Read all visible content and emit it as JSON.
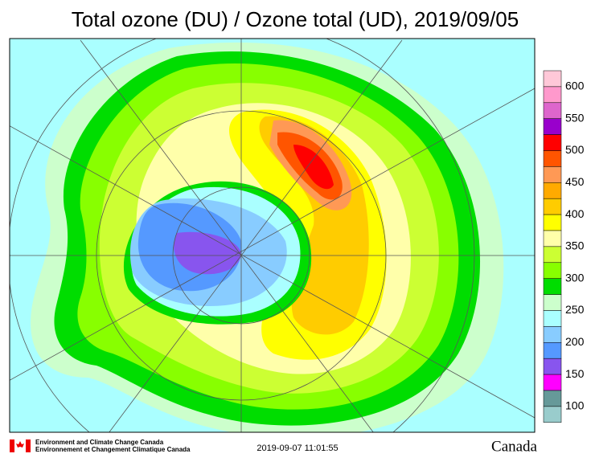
{
  "header": {
    "title": "Total ozone (DU) / Ozone total (UD), 2019/09/05"
  },
  "colorbar": {
    "labels": [
      600,
      550,
      500,
      450,
      400,
      350,
      300,
      250,
      200,
      150,
      100
    ],
    "colors": [
      "#ffc8d8",
      "#ff99cc",
      "#dd66cc",
      "#9900cc",
      "#ff0000",
      "#ff5500",
      "#ff9955",
      "#ffaa00",
      "#ffcc00",
      "#ffff00",
      "#ffffaa",
      "#ccff33",
      "#88ff00",
      "#00dd00",
      "#ccffcc",
      "#aaffff",
      "#88ccff",
      "#5599ff",
      "#8855ee",
      "#ff00ff",
      "#669999",
      "#99cccc"
    ]
  },
  "footer": {
    "agency_en": "Environment and Climate Change Canada",
    "agency_fr": "Environnement et Changement Climatique Canada",
    "timestamp": "2019-09-07 11:01:55",
    "wordmark": "Canada"
  }
}
